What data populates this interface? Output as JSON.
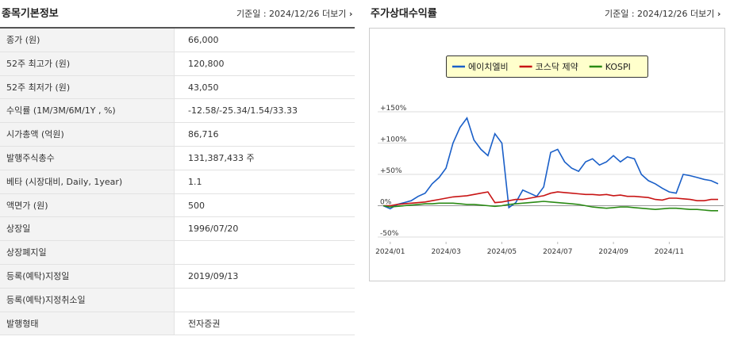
{
  "info_panel": {
    "title": "종목기본정보",
    "date_label": "기준일 : 2024/12/26",
    "more": "더보기",
    "rows": [
      {
        "label": "종가 (원)",
        "value": "66,000"
      },
      {
        "label": "52주 최고가 (원)",
        "value": "120,800"
      },
      {
        "label": "52주 최저가 (원)",
        "value": "43,050"
      },
      {
        "label": "수익률 (1M/3M/6M/1Y , %)",
        "value": "-12.58/-25.34/1.54/33.33"
      },
      {
        "label": "시가총액 (억원)",
        "value": "86,716"
      },
      {
        "label": "발행주식총수",
        "value": "131,387,433 주"
      },
      {
        "label": "베타 (시장대비, Daily, 1year)",
        "value": "1.1"
      },
      {
        "label": "액면가 (원)",
        "value": "500"
      },
      {
        "label": "상장일",
        "value": "1996/07/20"
      },
      {
        "label": "상장폐지일"
      },
      {
        "label": "등록(예탁)지정일",
        "value": "2019/09/13"
      },
      {
        "label": "등록(예탁)지정취소일"
      },
      {
        "label": "발행형태",
        "value": "전자증권"
      }
    ]
  },
  "chart_panel": {
    "title": "주가상대수익률",
    "date_label": "기준일 : 2024/12/26",
    "more": "더보기"
  },
  "chart_data": {
    "type": "line",
    "x": [
      0.75,
      1,
      1.25,
      1.5,
      1.75,
      2,
      2.25,
      2.5,
      2.75,
      3,
      3.25,
      3.5,
      3.75,
      4,
      4.25,
      4.5,
      4.75,
      5,
      5.25,
      5.5,
      5.75,
      6,
      6.25,
      6.5,
      6.75,
      7,
      7.25,
      7.5,
      7.75,
      8,
      8.25,
      8.5,
      8.75,
      9,
      9.25,
      9.5,
      9.75,
      10,
      10.25,
      10.5,
      10.75,
      11,
      11.25,
      11.5,
      11.75,
      12,
      12.25,
      12.5,
      12.75
    ],
    "series": [
      {
        "name": "에이치엘비",
        "color": "#1a5fc8",
        "values": [
          0,
          -5,
          2,
          5,
          8,
          15,
          20,
          35,
          45,
          60,
          100,
          125,
          140,
          105,
          90,
          80,
          115,
          100,
          -3,
          5,
          25,
          20,
          15,
          30,
          85,
          90,
          70,
          60,
          55,
          70,
          75,
          65,
          70,
          80,
          70,
          78,
          75,
          50,
          40,
          35,
          28,
          22,
          20,
          50,
          48,
          45,
          42,
          40,
          35
        ]
      },
      {
        "name": "코스닥 제약",
        "color": "#c81414",
        "values": [
          0,
          0,
          2,
          3,
          4,
          5,
          6,
          8,
          10,
          12,
          14,
          15,
          16,
          18,
          20,
          22,
          5,
          6,
          8,
          10,
          10,
          12,
          14,
          16,
          20,
          22,
          21,
          20,
          19,
          18,
          18,
          17,
          18,
          16,
          17,
          15,
          15,
          14,
          13,
          10,
          9,
          12,
          12,
          11,
          10,
          8,
          8,
          10,
          10
        ]
      },
      {
        "name": "KOSPI",
        "color": "#2a8a14",
        "values": [
          0,
          -2,
          -1,
          0,
          1,
          2,
          3,
          3,
          4,
          4,
          4,
          3,
          2,
          2,
          1,
          0,
          -1,
          0,
          2,
          3,
          4,
          5,
          6,
          7,
          6,
          5,
          4,
          3,
          2,
          0,
          -2,
          -3,
          -4,
          -3,
          -2,
          -2,
          -3,
          -4,
          -5,
          -6,
          -5,
          -4,
          -4,
          -5,
          -6,
          -6,
          -7,
          -8,
          -8
        ]
      }
    ],
    "xlim": [
      0.55,
      12.95
    ],
    "xticks": [
      {
        "value": 1,
        "label": "2024/01"
      },
      {
        "value": 3,
        "label": "2024/03"
      },
      {
        "value": 5,
        "label": "2024/05"
      },
      {
        "value": 7,
        "label": "2024/07"
      },
      {
        "value": 9,
        "label": "2024/09"
      },
      {
        "value": 11,
        "label": "2024/11"
      }
    ],
    "ylim": [
      -50,
      150
    ],
    "yticks": [
      {
        "value": 150,
        "label": "+150%"
      },
      {
        "value": 100,
        "label": "+100%"
      },
      {
        "value": 50,
        "label": "+50%"
      },
      {
        "value": 0,
        "label": "0%"
      },
      {
        "value": -50,
        "label": "-50%"
      }
    ],
    "grid": true,
    "legend": "top"
  }
}
